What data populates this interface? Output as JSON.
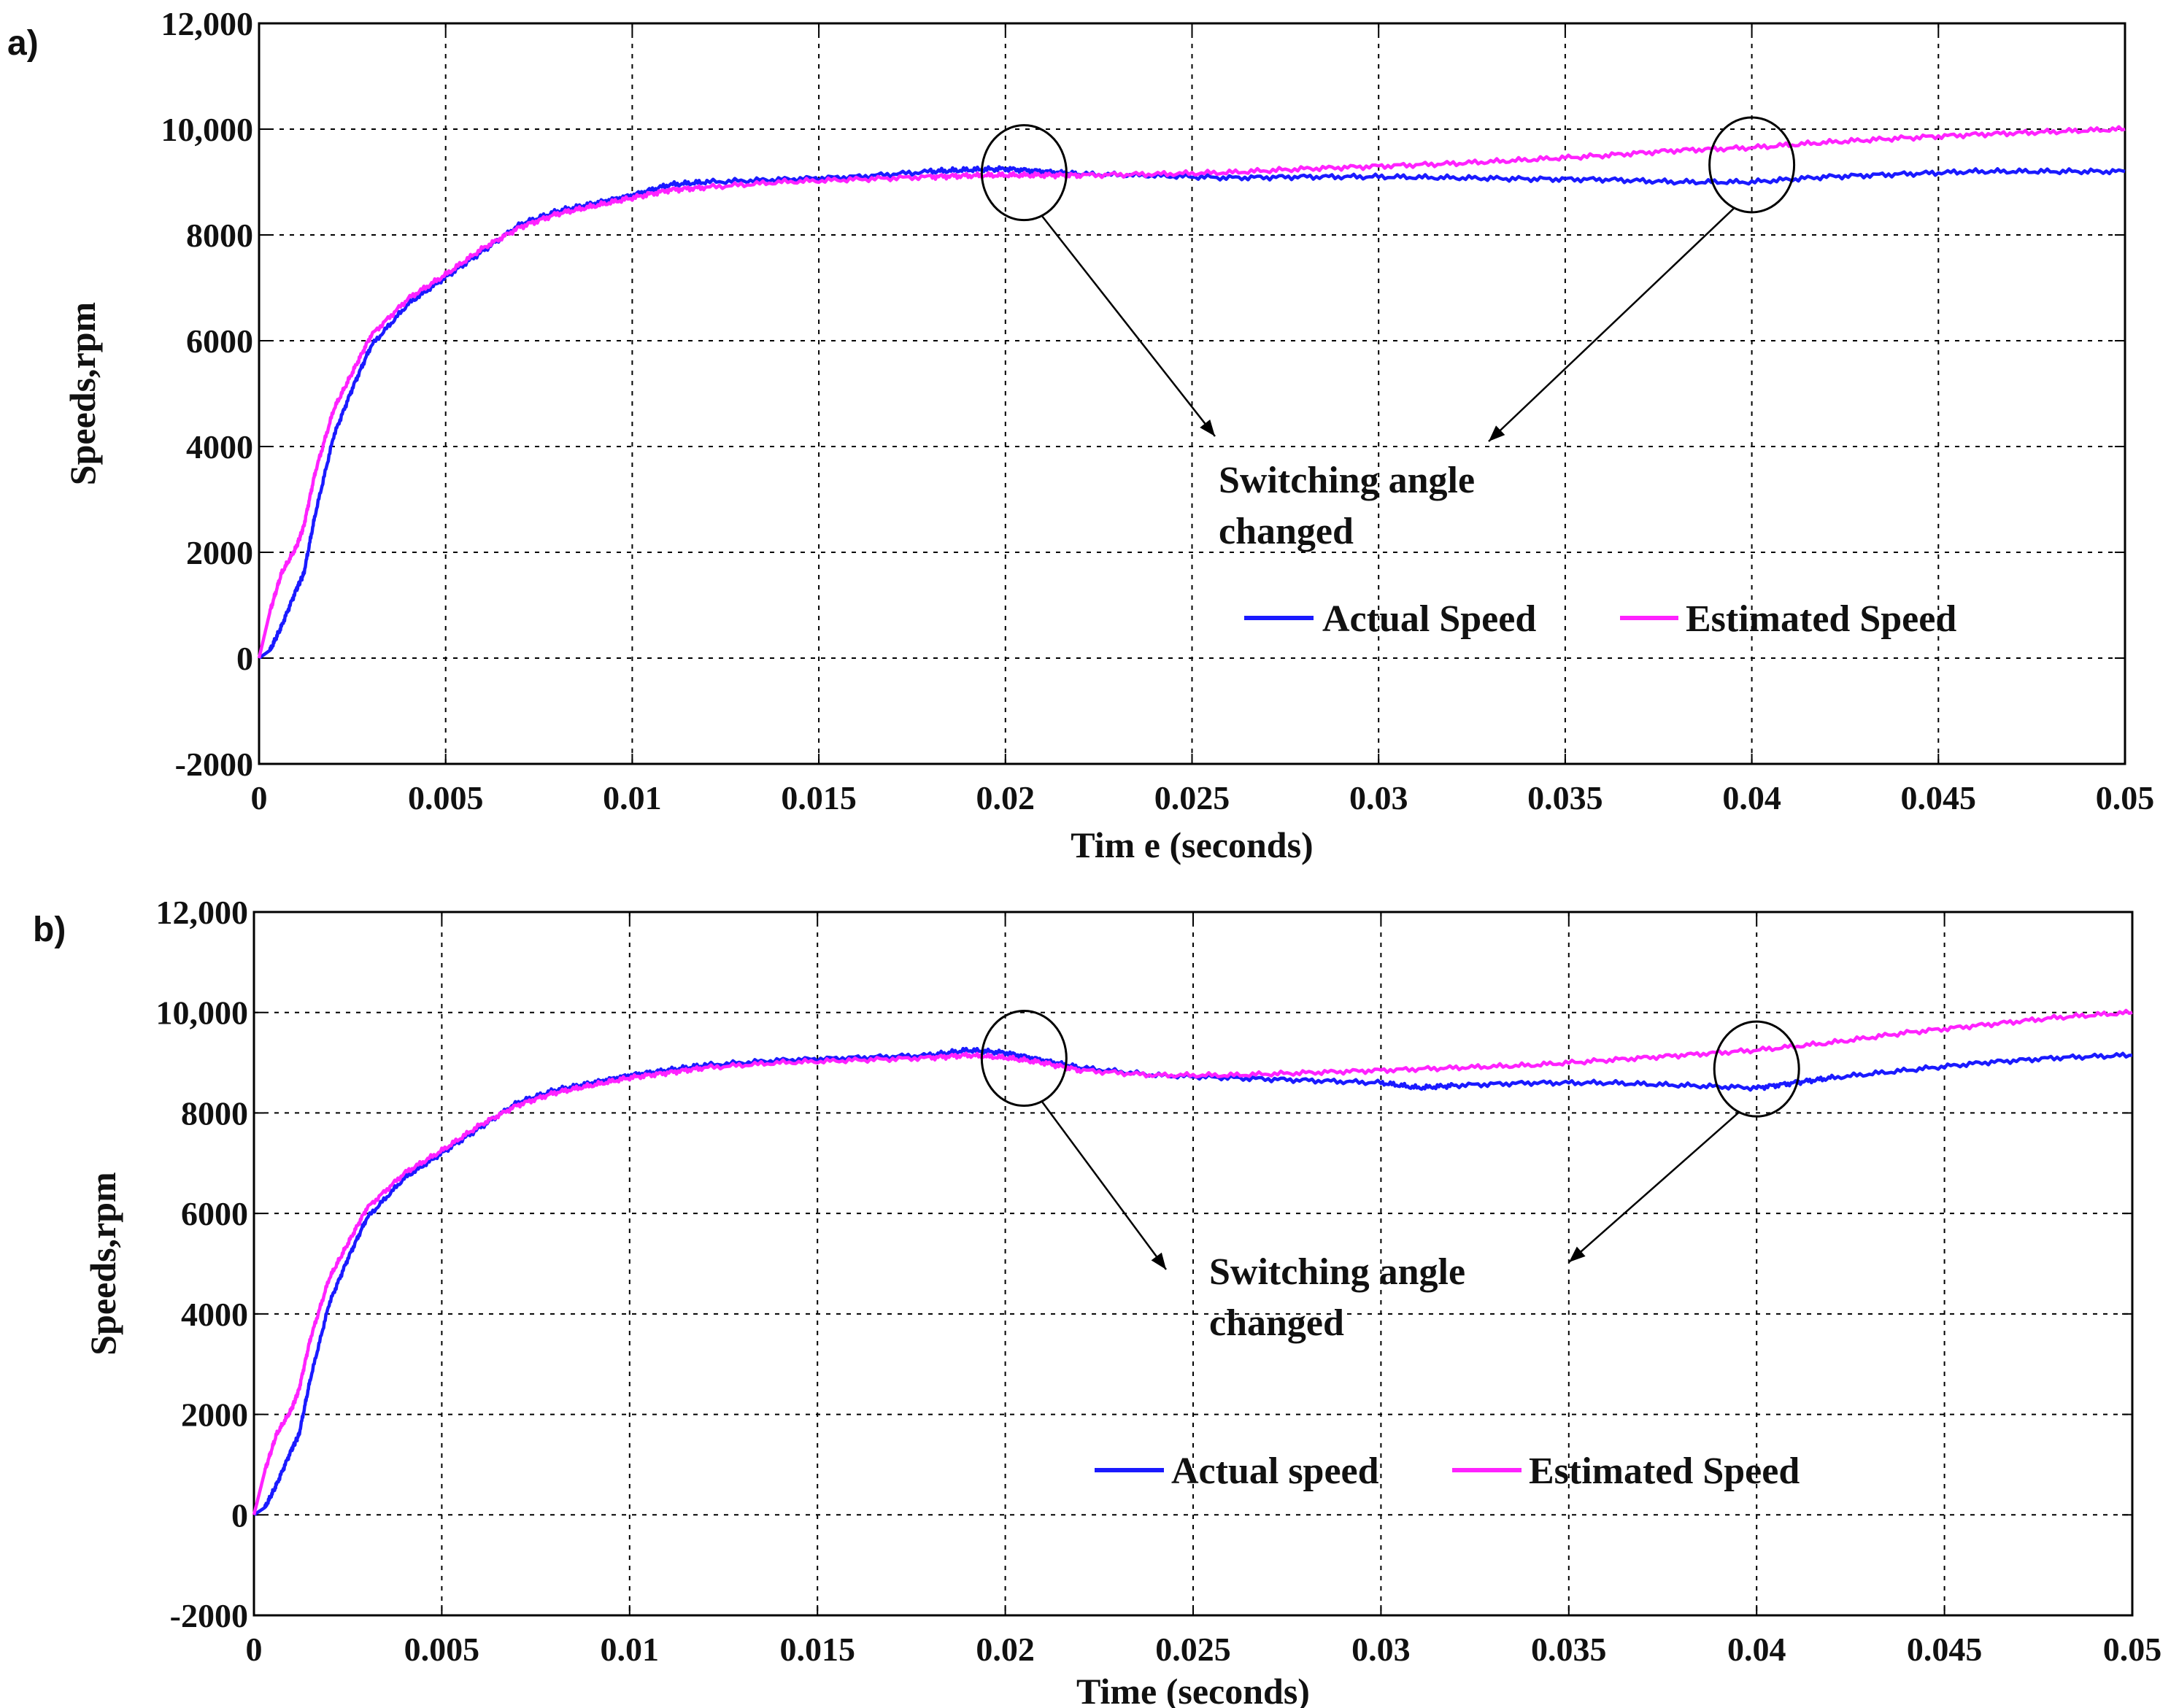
{
  "chart_data": [
    {
      "type": "line",
      "panel_label": "a)",
      "xlabel": "Tim e (seconds)",
      "ylabel": "Speeds,rpm",
      "xlim": [
        0,
        0.05
      ],
      "ylim": [
        -2000,
        12000
      ],
      "xticks": [
        0,
        0.005,
        0.01,
        0.015,
        0.02,
        0.025,
        0.03,
        0.035,
        0.04,
        0.045,
        0.05
      ],
      "xtick_labels": [
        "0",
        "0.005",
        "0.01",
        "0.015",
        "0.02",
        "0.025",
        "0.03",
        "0.035",
        "0.04",
        "0.045",
        "0.05"
      ],
      "yticks": [
        -2000,
        0,
        2000,
        4000,
        6000,
        8000,
        10000,
        12000
      ],
      "ytick_labels": [
        "-2000",
        "0",
        "2000",
        "4000",
        "6000",
        "8000",
        "10,000",
        "12,000"
      ],
      "grid": true,
      "legend": {
        "position": "lower-right",
        "entries": [
          "Actual Speed",
          "Estimated Speed"
        ]
      },
      "annotation": {
        "line1": "Switching angle",
        "line2": "changed",
        "circled_x": [
          0.0205,
          0.04
        ]
      },
      "series": [
        {
          "name": "Actual Speed",
          "color": "#1a1aff",
          "x": [
            0,
            0.0003,
            0.0006,
            0.001,
            0.0012,
            0.0015,
            0.002,
            0.0025,
            0.003,
            0.004,
            0.005,
            0.006,
            0.007,
            0.008,
            0.009,
            0.01,
            0.011,
            0.012,
            0.014,
            0.016,
            0.018,
            0.019,
            0.02,
            0.021,
            0.022,
            0.024,
            0.026,
            0.028,
            0.03,
            0.032,
            0.034,
            0.036,
            0.038,
            0.04,
            0.042,
            0.044,
            0.046,
            0.048,
            0.05
          ],
          "y": [
            0,
            150,
            600,
            1300,
            1600,
            2700,
            4200,
            5100,
            5900,
            6700,
            7200,
            7700,
            8200,
            8450,
            8600,
            8750,
            8950,
            9000,
            9050,
            9100,
            9200,
            9230,
            9250,
            9200,
            9150,
            9120,
            9080,
            9100,
            9100,
            9080,
            9060,
            9050,
            9000,
            9000,
            9100,
            9150,
            9200,
            9200,
            9200
          ]
        },
        {
          "name": "Estimated Speed",
          "color": "#ff22ff",
          "x": [
            0,
            0.0003,
            0.0006,
            0.001,
            0.0012,
            0.0015,
            0.002,
            0.0025,
            0.003,
            0.004,
            0.005,
            0.006,
            0.007,
            0.008,
            0.009,
            0.01,
            0.011,
            0.012,
            0.014,
            0.016,
            0.018,
            0.019,
            0.02,
            0.021,
            0.022,
            0.024,
            0.026,
            0.028,
            0.03,
            0.032,
            0.034,
            0.036,
            0.038,
            0.04,
            0.042,
            0.044,
            0.046,
            0.048,
            0.05
          ],
          "y": [
            0,
            900,
            1600,
            2100,
            2500,
            3500,
            4700,
            5400,
            6100,
            6800,
            7250,
            7750,
            8150,
            8400,
            8550,
            8700,
            8850,
            8900,
            9000,
            9050,
            9100,
            9120,
            9130,
            9130,
            9130,
            9150,
            9180,
            9250,
            9300,
            9350,
            9420,
            9500,
            9600,
            9650,
            9750,
            9830,
            9900,
            9950,
            10000
          ]
        }
      ]
    },
    {
      "type": "line",
      "panel_label": "b)",
      "xlabel": "Time (seconds)",
      "ylabel": "Speeds,rpm",
      "xlim": [
        0,
        0.05
      ],
      "ylim": [
        -2000,
        12000
      ],
      "xticks": [
        0,
        0.005,
        0.01,
        0.015,
        0.02,
        0.025,
        0.03,
        0.035,
        0.04,
        0.045,
        0.05
      ],
      "xtick_labels": [
        "0",
        "0.005",
        "0.01",
        "0.015",
        "0.02",
        "0.025",
        "0.03",
        "0.035",
        "0.04",
        "0.045",
        "0.05"
      ],
      "yticks": [
        -2000,
        0,
        2000,
        4000,
        6000,
        8000,
        10000,
        12000
      ],
      "ytick_labels": [
        "-2000",
        "0",
        "2000",
        "4000",
        "6000",
        "8000",
        "10,000",
        "12,000"
      ],
      "grid": true,
      "legend": {
        "position": "lower-right",
        "entries": [
          "Actual speed",
          "Estimated Speed"
        ]
      },
      "annotation": {
        "line1": "Switching angle",
        "line2": "changed",
        "circled_x": [
          0.0205,
          0.04
        ]
      },
      "series": [
        {
          "name": "Actual speed",
          "color": "#1a1aff",
          "x": [
            0,
            0.0003,
            0.0006,
            0.001,
            0.0012,
            0.0015,
            0.002,
            0.0025,
            0.003,
            0.004,
            0.005,
            0.006,
            0.007,
            0.008,
            0.009,
            0.01,
            0.011,
            0.012,
            0.014,
            0.016,
            0.018,
            0.019,
            0.02,
            0.021,
            0.022,
            0.024,
            0.026,
            0.028,
            0.03,
            0.031,
            0.032,
            0.034,
            0.036,
            0.038,
            0.04,
            0.041,
            0.042,
            0.044,
            0.046,
            0.048,
            0.05
          ],
          "y": [
            0,
            150,
            600,
            1300,
            1600,
            2700,
            4200,
            5100,
            5900,
            6700,
            7200,
            7700,
            8200,
            8450,
            8600,
            8750,
            8850,
            8950,
            9050,
            9100,
            9150,
            9250,
            9200,
            9050,
            8900,
            8750,
            8700,
            8650,
            8600,
            8500,
            8550,
            8600,
            8600,
            8550,
            8500,
            8600,
            8700,
            8850,
            9000,
            9100,
            9150
          ]
        },
        {
          "name": "Estimated Speed",
          "color": "#ff22ff",
          "x": [
            0,
            0.0003,
            0.0006,
            0.001,
            0.0012,
            0.0015,
            0.002,
            0.0025,
            0.003,
            0.004,
            0.005,
            0.006,
            0.007,
            0.008,
            0.009,
            0.01,
            0.011,
            0.012,
            0.014,
            0.016,
            0.018,
            0.019,
            0.02,
            0.021,
            0.022,
            0.024,
            0.026,
            0.028,
            0.03,
            0.032,
            0.034,
            0.036,
            0.038,
            0.04,
            0.042,
            0.044,
            0.046,
            0.048,
            0.05
          ],
          "y": [
            0,
            900,
            1600,
            2100,
            2500,
            3500,
            4700,
            5400,
            6100,
            6800,
            7250,
            7750,
            8150,
            8400,
            8550,
            8700,
            8800,
            8900,
            9000,
            9050,
            9100,
            9150,
            9100,
            9000,
            8850,
            8750,
            8750,
            8800,
            8850,
            8900,
            8950,
            9050,
            9150,
            9250,
            9400,
            9600,
            9750,
            9900,
            10000
          ]
        }
      ]
    }
  ]
}
